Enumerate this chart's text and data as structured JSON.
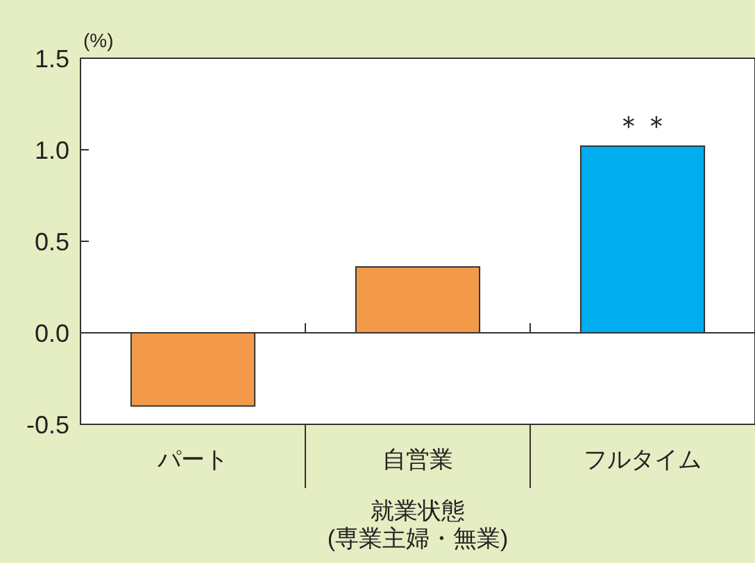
{
  "chart_data": {
    "type": "bar",
    "ylabel": "(%)",
    "xlabel": "就業状態\n(専業主婦・無業)",
    "categories": [
      "パート",
      "自営業",
      "フルタイム"
    ],
    "values": [
      -0.4,
      0.36,
      1.02
    ],
    "colors": [
      "#f39a4a",
      "#f39a4a",
      "#00aeef"
    ],
    "ylim": [
      -0.5,
      1.5
    ],
    "yticks": [
      {
        "value": -0.5,
        "label": "-0.5"
      },
      {
        "value": 0,
        "label": "0.0"
      },
      {
        "value": 0.5,
        "label": "0.5"
      },
      {
        "value": 1,
        "label": "1.0"
      },
      {
        "value": 1.5,
        "label": "1.5"
      }
    ],
    "annotations": [
      {
        "text": "＊＊",
        "x": "フルタイム",
        "y": 1.02
      }
    ]
  }
}
